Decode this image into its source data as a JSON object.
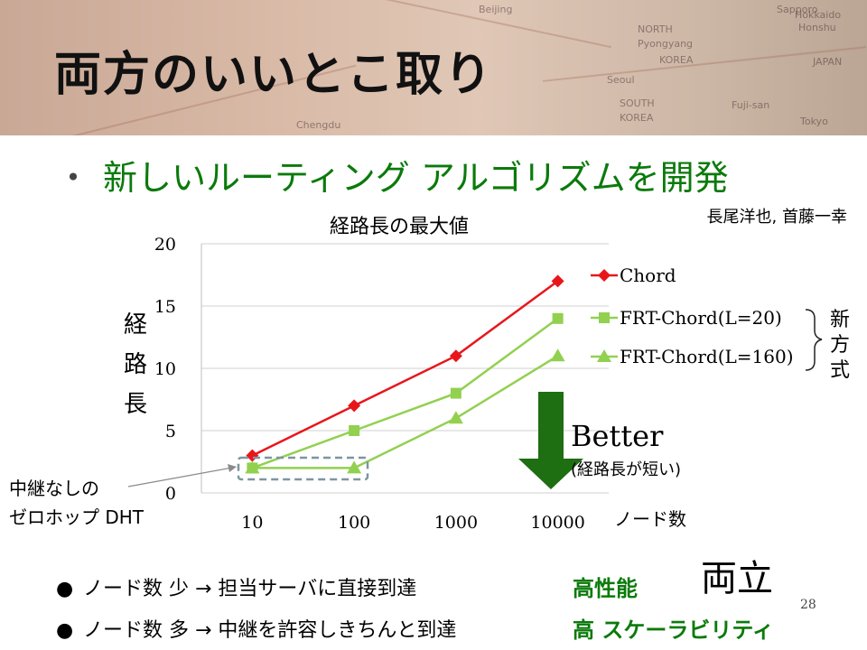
{
  "slide": {
    "title": "両方のいいとこ取り",
    "subtitle": "新しいルーティング アルゴリズムを開発",
    "subtitle_bullet": "・",
    "authors": "長尾洋也, 首藤一幸",
    "page_number": "28"
  },
  "header_map_words": [
    "Beijing",
    "NORTH",
    "Pyongyang",
    "KOREA",
    "Seoul",
    "SOUTH",
    "KOREA",
    "JAPAN",
    "Honshu",
    "Tokyo",
    "Sapporo",
    "Fuji-san",
    "Chengdu",
    "Hokkaido"
  ],
  "chart_data": {
    "type": "line",
    "title": "経路長の最大値",
    "xlabel": "ノード数",
    "ylabel": "経路長",
    "categories": [
      "10",
      "100",
      "1000",
      "10000"
    ],
    "y_ticks": [
      "0",
      "5",
      "10",
      "15",
      "20"
    ],
    "ylim": [
      0,
      20
    ],
    "grid": true,
    "legend_position": "right",
    "series": [
      {
        "name": "Chord",
        "values": [
          3,
          7,
          11,
          17
        ],
        "color": "#e8161b",
        "marker": "diamond"
      },
      {
        "name": "FRT-Chord(L=20)",
        "values": [
          2,
          5,
          8,
          14
        ],
        "color": "#92d050",
        "marker": "square"
      },
      {
        "name": "FRT-Chord(L=160)",
        "values": [
          2,
          2,
          6,
          11
        ],
        "color": "#92d050",
        "marker": "triangle"
      }
    ]
  },
  "annotations": {
    "new_method": "新方式",
    "better": "Better",
    "better_note": "(経路長が短い)",
    "zero_hop_line1": "中継なしの",
    "zero_hop_line2": "ゼロホップ DHT"
  },
  "bottom": [
    {
      "text": "ノード数 少 → 担当サーバに直接到達",
      "result": "高性能"
    },
    {
      "text": "ノード数 多 → 中継を許容しきちんと到達",
      "result": "高 スケーラビリティ"
    }
  ],
  "both_label": "両立",
  "colors": {
    "accent_green": "#0b7a0b",
    "chord_red": "#e8161b",
    "frt_green": "#92d050",
    "arrow_green": "#1e6e12"
  }
}
